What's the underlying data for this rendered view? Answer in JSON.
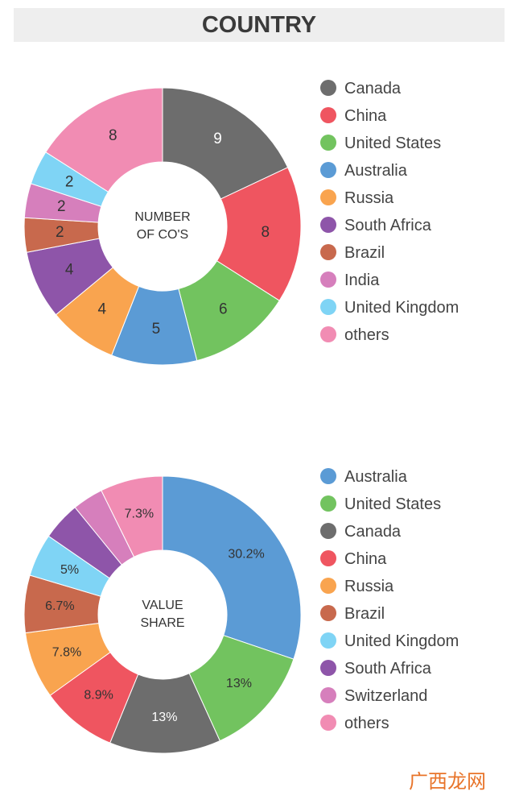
{
  "header": {
    "title": "COUNTRY"
  },
  "chart_data": [
    {
      "type": "pie",
      "center_label": "NUMBER OF CO'S",
      "categories": [
        "Canada",
        "China",
        "United States",
        "Australia",
        "Russia",
        "South Africa",
        "Brazil",
        "India",
        "United Kingdom",
        "others"
      ],
      "values": [
        9,
        8,
        6,
        5,
        4,
        4,
        2,
        2,
        2,
        8
      ],
      "colors": [
        "#6d6d6d",
        "#ef5560",
        "#72c35f",
        "#5b9bd5",
        "#f9a44f",
        "#8e55a9",
        "#c8694d",
        "#d67fbc",
        "#7fd4f5",
        "#f18cb3"
      ]
    },
    {
      "type": "pie",
      "center_label": "VALUE SHARE",
      "categories": [
        "Australia",
        "United States",
        "Canada",
        "China",
        "Russia",
        "Brazil",
        "United Kingdom",
        "South Africa",
        "Switzerland",
        "others"
      ],
      "values": [
        30.2,
        13,
        13,
        8.9,
        7.8,
        6.7,
        5,
        4.5,
        3.6,
        7.3
      ],
      "value_labels": [
        "30.2%",
        "13%",
        "13%",
        "8.9%",
        "7.8%",
        "6.7%",
        "5%",
        null,
        null,
        "7.3%"
      ],
      "colors": [
        "#5b9bd5",
        "#72c35f",
        "#6d6d6d",
        "#ef5560",
        "#f9a44f",
        "#c8694d",
        "#7fd4f5",
        "#8e55a9",
        "#d67fbc",
        "#f18cb3"
      ]
    }
  ],
  "watermark": "广西龙网"
}
